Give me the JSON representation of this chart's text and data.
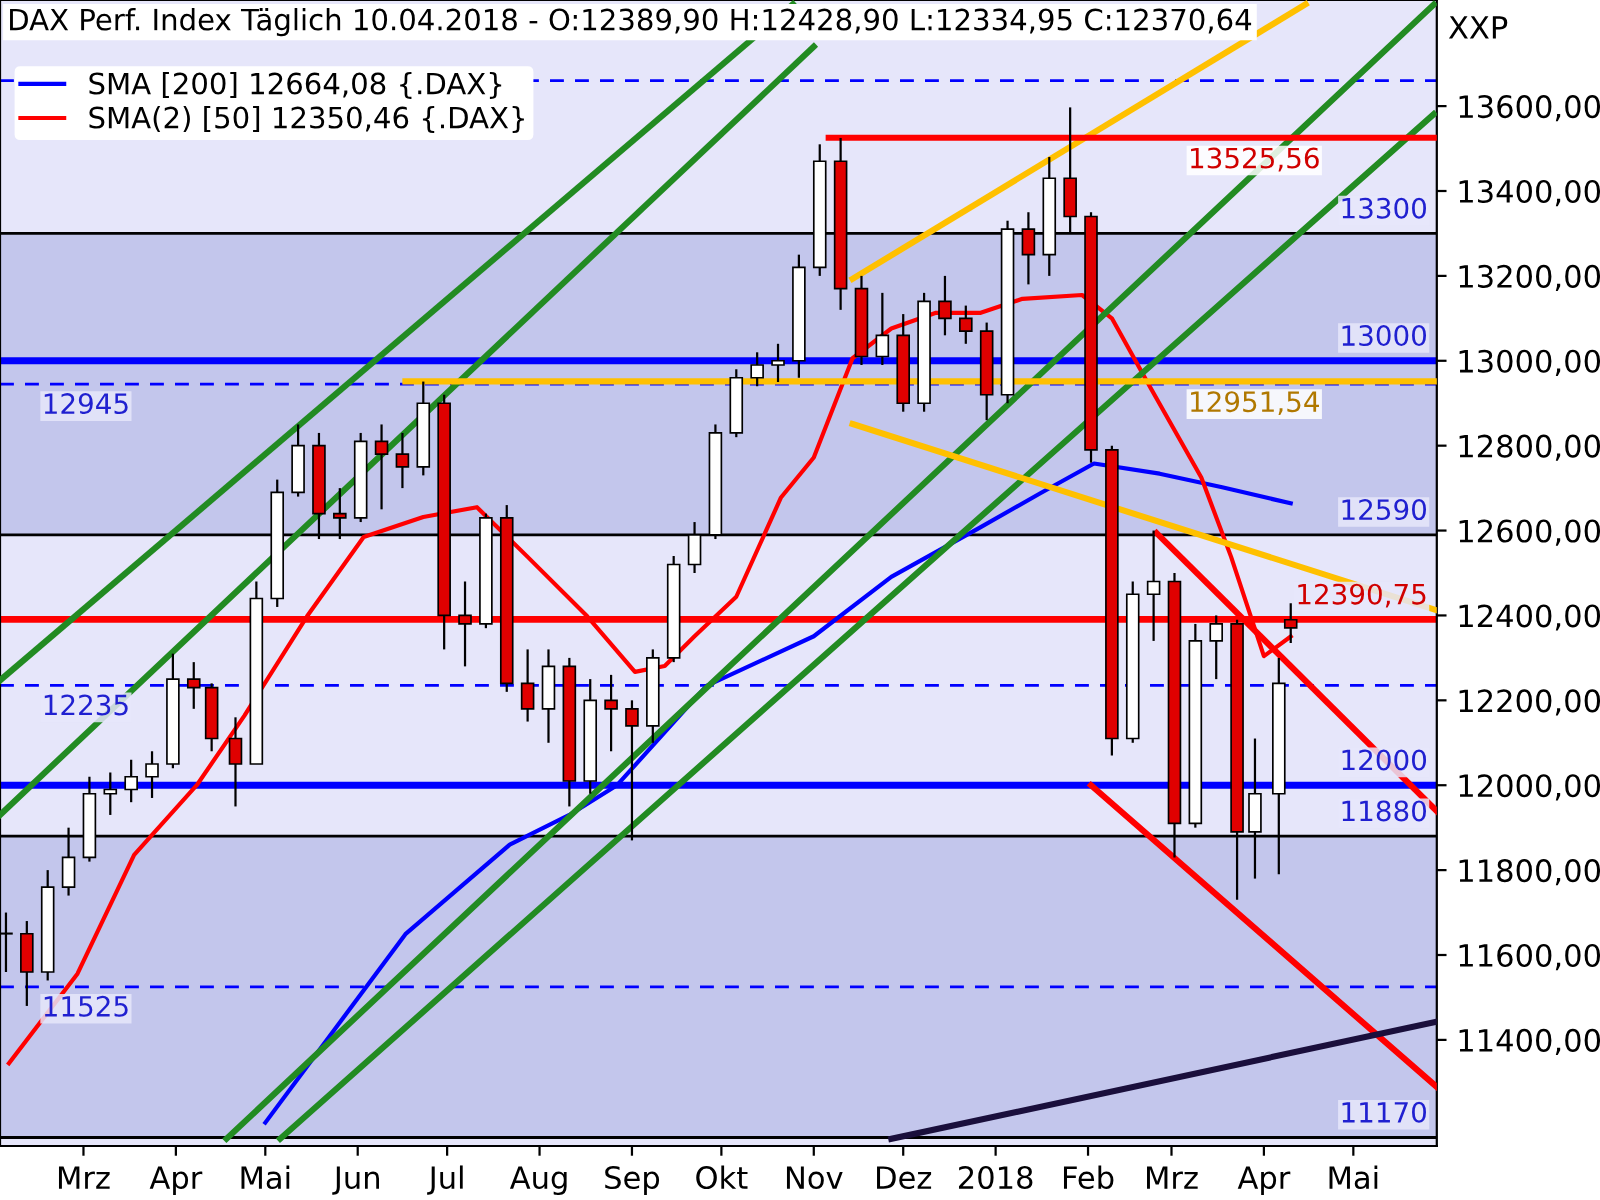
{
  "chart_data": {
    "type": "candlestick",
    "title": "DAX Perf. Index Täglich 10.04.2018 - O:12389,90 H:12428,90 L:12334,95 C:12370,64",
    "annotations": [
      "XXP",
      {
        "text": "13525,56",
        "x": "2018-04-20",
        "y": 13525.56
      },
      {
        "text": "12951,54",
        "x": "2018-04-20",
        "y": 12951.54
      }
    ],
    "x": [
      "2017-02-03",
      "2017-02-10",
      "2017-02-17",
      "2017-02-24",
      "2017-03-03",
      "2017-03-10",
      "2017-03-17",
      "2017-03-24",
      "2017-03-31",
      "2017-04-07",
      "2017-04-13",
      "2017-04-21",
      "2017-04-28",
      "2017-05-05",
      "2017-05-12",
      "2017-05-19",
      "2017-05-26",
      "2017-06-02",
      "2017-06-09",
      "2017-06-16",
      "2017-06-23",
      "2017-06-30",
      "2017-07-07",
      "2017-07-14",
      "2017-07-21",
      "2017-07-28",
      "2017-08-04",
      "2017-08-11",
      "2017-08-18",
      "2017-08-25",
      "2017-09-01",
      "2017-09-08",
      "2017-09-15",
      "2017-09-22",
      "2017-09-29",
      "2017-10-06",
      "2017-10-13",
      "2017-10-20",
      "2017-10-27",
      "2017-11-03",
      "2017-11-10",
      "2017-11-17",
      "2017-11-24",
      "2017-12-01",
      "2017-12-08",
      "2017-12-15",
      "2017-12-22",
      "2017-12-29",
      "2018-01-05",
      "2018-01-12",
      "2018-01-19",
      "2018-01-26",
      "2018-02-02",
      "2018-02-09",
      "2018-02-16",
      "2018-02-23",
      "2018-03-02",
      "2018-03-09",
      "2018-03-16",
      "2018-03-23",
      "2018-03-29",
      "2018-04-06",
      "2018-04-10"
    ],
    "ohlc": [
      [
        11650,
        11700,
        11560,
        11650
      ],
      [
        11650,
        11680,
        11480,
        11560
      ],
      [
        11560,
        11800,
        11540,
        11760
      ],
      [
        11760,
        11900,
        11740,
        11830
      ],
      [
        11830,
        12020,
        11820,
        11980
      ],
      [
        11980,
        12030,
        11930,
        11990
      ],
      [
        11990,
        12060,
        11960,
        12020
      ],
      [
        12020,
        12080,
        11970,
        12050
      ],
      [
        12050,
        12310,
        12040,
        12250
      ],
      [
        12250,
        12290,
        12180,
        12230
      ],
      [
        12230,
        12240,
        12080,
        12110
      ],
      [
        12110,
        12160,
        11950,
        12050
      ],
      [
        12050,
        12480,
        12050,
        12440
      ],
      [
        12440,
        12720,
        12420,
        12690
      ],
      [
        12690,
        12850,
        12680,
        12800
      ],
      [
        12800,
        12830,
        12580,
        12640
      ],
      [
        12640,
        12700,
        12580,
        12630
      ],
      [
        12630,
        12830,
        12620,
        12810
      ],
      [
        12810,
        12850,
        12650,
        12780
      ],
      [
        12780,
        12830,
        12700,
        12750
      ],
      [
        12750,
        12951,
        12730,
        12900
      ],
      [
        12900,
        12920,
        12320,
        12400
      ],
      [
        12400,
        12480,
        12280,
        12380
      ],
      [
        12380,
        12640,
        12370,
        12630
      ],
      [
        12630,
        12660,
        12220,
        12240
      ],
      [
        12240,
        12320,
        12150,
        12180
      ],
      [
        12180,
        12320,
        12100,
        12280
      ],
      [
        12280,
        12300,
        11950,
        12010
      ],
      [
        12010,
        12250,
        11980,
        12200
      ],
      [
        12200,
        12260,
        12080,
        12180
      ],
      [
        12180,
        12200,
        11870,
        12140
      ],
      [
        12140,
        12320,
        12100,
        12300
      ],
      [
        12300,
        12540,
        12290,
        12520
      ],
      [
        12520,
        12620,
        12500,
        12590
      ],
      [
        12590,
        12850,
        12580,
        12830
      ],
      [
        12830,
        12980,
        12820,
        12960
      ],
      [
        12960,
        13020,
        12940,
        12990
      ],
      [
        12990,
        13040,
        12950,
        13000
      ],
      [
        13000,
        13250,
        12960,
        13220
      ],
      [
        13220,
        13510,
        13200,
        13470
      ],
      [
        13470,
        13525,
        13120,
        13170
      ],
      [
        13170,
        13200,
        12990,
        13010
      ],
      [
        13010,
        13160,
        12990,
        13060
      ],
      [
        13060,
        13110,
        12880,
        12900
      ],
      [
        12900,
        13160,
        12880,
        13140
      ],
      [
        13140,
        13200,
        13060,
        13100
      ],
      [
        13100,
        13130,
        13040,
        13070
      ],
      [
        13070,
        13090,
        12860,
        12920
      ],
      [
        12920,
        13330,
        12900,
        13310
      ],
      [
        13310,
        13350,
        13180,
        13250
      ],
      [
        13250,
        13480,
        13200,
        13430
      ],
      [
        13430,
        13597,
        13300,
        13340
      ],
      [
        13340,
        13350,
        12760,
        12790
      ],
      [
        12790,
        12800,
        12070,
        12110
      ],
      [
        12110,
        12480,
        12100,
        12450
      ],
      [
        12450,
        12600,
        12340,
        12480
      ],
      [
        12480,
        12500,
        11830,
        11910
      ],
      [
        11910,
        12380,
        11900,
        12340
      ],
      [
        12340,
        12400,
        12250,
        12380
      ],
      [
        12380,
        12390,
        11730,
        11890
      ],
      [
        11890,
        12110,
        11780,
        11980
      ],
      [
        11980,
        12300,
        11790,
        12240
      ],
      [
        12389.9,
        12428.9,
        12334.95,
        12370.64
      ]
    ],
    "series": [
      {
        "type": "line",
        "name": "SMA [200] 12664,08 {.DAX}",
        "color": "#0000ff",
        "x": [
          "2017-05-01",
          "2017-06-17",
          "2017-07-22",
          "2017-08-11",
          "2017-08-27",
          "2017-09-26",
          "2017-11-01",
          "2017-11-27",
          "2017-12-27",
          "2018-01-16",
          "2018-02-03",
          "2018-02-25",
          "2018-03-18",
          "2018-04-10"
        ],
        "values": [
          11205,
          11649,
          11860,
          11930,
          12000,
          12234,
          12351,
          12491,
          12608,
          12688,
          12758,
          12734,
          12702,
          12664.08
        ]
      },
      {
        "type": "line",
        "name": "SMA(2) [50] 12350,46 {.DAX}",
        "color": "#ff0000",
        "x": [
          "2017-02-04",
          "2017-02-27",
          "2017-03-18",
          "2017-04-08",
          "2017-04-24",
          "2017-05-15",
          "2017-06-03",
          "2017-06-23",
          "2017-07-11",
          "2017-07-28",
          "2017-08-17",
          "2017-09-02",
          "2017-09-12",
          "2017-09-22",
          "2017-10-06",
          "2017-10-21",
          "2017-11-01",
          "2017-11-14",
          "2017-11-27",
          "2017-12-12",
          "2017-12-27",
          "2018-01-10",
          "2018-01-30",
          "2018-02-09",
          "2018-02-22",
          "2018-03-11",
          "2018-03-21",
          "2018-04-01",
          "2018-04-10"
        ],
        "values": [
          11345,
          11556,
          11836,
          12000,
          12164,
          12398,
          12585,
          12632,
          12655,
          12538,
          12398,
          12267,
          12281,
          12351,
          12444,
          12678,
          12772,
          13006,
          13076,
          13113,
          13113,
          13146,
          13155,
          13100,
          12936,
          12725,
          12538,
          12304,
          12350.46
        ]
      },
      {
        "type": "line",
        "color": "#228b22",
        "x": [
          "2017-02-01",
          "2017-10-25"
        ],
        "values": [
          12247,
          13840
        ]
      },
      {
        "type": "line",
        "color": "#228b22",
        "x": [
          "2017-02-01",
          "2017-11-01"
        ],
        "values": [
          11930,
          13740
        ]
      },
      {
        "type": "line",
        "color": "#228b22",
        "x": [
          "2017-04-18",
          "2018-05-28"
        ],
        "values": [
          11167,
          13839
        ]
      },
      {
        "type": "line",
        "color": "#228b22",
        "x": [
          "2017-05-06",
          "2018-05-28"
        ],
        "values": [
          11167,
          13581
        ]
      },
      {
        "type": "line",
        "color": "#ffc000",
        "x": [
          "2017-11-14",
          "2018-04-15"
        ],
        "values": [
          13193,
          13840
        ]
      },
      {
        "type": "line",
        "color": "#ffc000",
        "x": [
          "2017-11-14",
          "2018-05-29"
        ],
        "values": [
          12851,
          12412
        ]
      },
      {
        "type": "line",
        "color": "#ff0000",
        "x": [
          "2018-02-02",
          "2018-05-29"
        ],
        "values": [
          12000,
          11289
        ]
      },
      {
        "type": "line",
        "color": "#ff0000",
        "x": [
          "2018-02-24",
          "2018-05-29"
        ],
        "values": [
          12594,
          11939
        ]
      },
      {
        "type": "line",
        "color": "#1a0f3c",
        "x": [
          "2017-11-27",
          "2018-05-29"
        ],
        "values": [
          11167,
          11443
        ]
      },
      {
        "type": "line",
        "color": "#ff0000",
        "x": [
          "2017-11-06",
          "2018-05-29"
        ],
        "values": [
          13525.56,
          13525.56
        ]
      },
      {
        "type": "line",
        "color": "#ffc000",
        "x": [
          "2017-06-17",
          "2018-05-29"
        ],
        "values": [
          12951.54,
          12951.54
        ]
      }
    ],
    "ref_lines": [
      {
        "axis": "y",
        "value": 13660,
        "label": null,
        "color": "#0000ff",
        "line_style": "dashed"
      },
      {
        "axis": "y",
        "value": 13300,
        "label": "13300",
        "color": "#000000",
        "line_style": "solid"
      },
      {
        "axis": "y",
        "value": 13000,
        "label": "13000",
        "color": "#0000ff",
        "line_style": "solid"
      },
      {
        "axis": "y",
        "value": 12945,
        "label": "12945",
        "color": "#0000ff",
        "line_style": "dashed"
      },
      {
        "axis": "y",
        "value": 12590,
        "label": "12590",
        "color": "#000000",
        "line_style": "solid"
      },
      {
        "axis": "y",
        "value": 12390.75,
        "label": "12390,75",
        "color": "#ff0000",
        "line_style": "solid"
      },
      {
        "axis": "y",
        "value": 12235,
        "label": "12235",
        "color": "#0000ff",
        "line_style": "dashed"
      },
      {
        "axis": "y",
        "value": 12000,
        "label": "12000",
        "color": "#0000ff",
        "line_style": "solid"
      },
      {
        "axis": "y",
        "value": 11880,
        "label": "11880",
        "color": "#000000",
        "line_style": "solid"
      },
      {
        "axis": "y",
        "value": 11525,
        "label": "11525",
        "color": "#0000ff",
        "line_style": "dashed"
      },
      {
        "axis": "y",
        "value": 11170,
        "label": "11170",
        "color": "#000000",
        "line_style": "solid"
      }
    ],
    "bands": [
      {
        "axis": "y",
        "from": 12590,
        "to": 13300,
        "color": "#c3c6ec"
      },
      {
        "axis": "y",
        "from": 11170,
        "to": 11880,
        "color": "#c3c6ec"
      }
    ],
    "xlim": [
      "2017-02-01",
      "2018-05-29"
    ],
    "xticks": [
      {
        "value": "2017-03-01",
        "label": "Mrz"
      },
      {
        "value": "2017-04-01",
        "label": "Apr"
      },
      {
        "value": "2017-05-01",
        "label": "Mai"
      },
      {
        "value": "2017-06-01",
        "label": "Jun"
      },
      {
        "value": "2017-07-01",
        "label": "Jul"
      },
      {
        "value": "2017-08-01",
        "label": "Aug"
      },
      {
        "value": "2017-09-01",
        "label": "Sep"
      },
      {
        "value": "2017-10-01",
        "label": "Okt"
      },
      {
        "value": "2017-11-01",
        "label": "Nov"
      },
      {
        "value": "2017-12-01",
        "label": "Dez"
      },
      {
        "value": "2018-01-01",
        "label": "2018"
      },
      {
        "value": "2018-02-01",
        "label": "Feb"
      },
      {
        "value": "2018-03-01",
        "label": "Mrz"
      },
      {
        "value": "2018-04-01",
        "label": "Apr"
      },
      {
        "value": "2018-05-01",
        "label": "Mai"
      }
    ],
    "ylim": [
      11150,
      13850
    ],
    "yticks": [
      {
        "value": 11400,
        "label": "11400,00"
      },
      {
        "value": 11600,
        "label": "11600,00"
      },
      {
        "value": 11800,
        "label": "11800,00"
      },
      {
        "value": 12000,
        "label": "12000,00"
      },
      {
        "value": 12200,
        "label": "12200,00"
      },
      {
        "value": 12400,
        "label": "12400,00"
      },
      {
        "value": 12600,
        "label": "12600,00"
      },
      {
        "value": 12800,
        "label": "12800,00"
      },
      {
        "value": 13000,
        "label": "13000,00"
      },
      {
        "value": 13200,
        "label": "13200,00"
      },
      {
        "value": 13400,
        "label": "13400,00"
      },
      {
        "value": 13600,
        "label": "13600,00"
      }
    ],
    "legend": "top left"
  }
}
